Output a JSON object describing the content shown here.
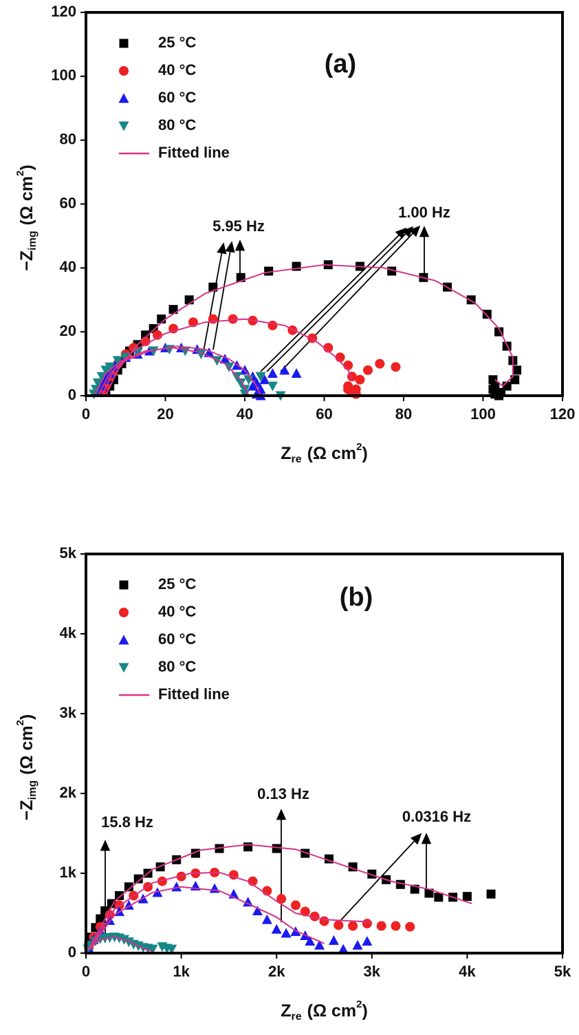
{
  "chart_data": [
    {
      "type": "scatter",
      "panel_label": "(a)",
      "xlabel": {
        "main": "Z",
        "sub": "re",
        "unit": "(Ω cm",
        "sup": "2",
        "end": ")"
      },
      "ylabel": {
        "main": "−Z",
        "sub": "img",
        "unit": "(Ω cm",
        "sup": "2",
        "end": ")"
      },
      "xlim": [
        0,
        120
      ],
      "xticks": [
        0,
        20,
        40,
        60,
        80,
        100,
        120
      ],
      "ylim": [
        0,
        120
      ],
      "yticks": [
        0,
        20,
        40,
        60,
        80,
        100,
        120
      ],
      "legend": "upper left",
      "annotations": [
        "5.95 Hz",
        "1.00 Hz"
      ],
      "series": [
        {
          "name": "25 °C",
          "color": "#000000",
          "marker": "square",
          "x": [
            5,
            6,
            7,
            8,
            9,
            10,
            11,
            13,
            15,
            17,
            19,
            22,
            26,
            32,
            39,
            46,
            53,
            61,
            69,
            77,
            85,
            91,
            97,
            101,
            104,
            106,
            107.5,
            108.5,
            108,
            106,
            104.5,
            103,
            102.5,
            102.5,
            103,
            104
          ],
          "values": [
            1,
            3,
            5,
            8,
            10,
            12,
            14,
            16,
            19,
            21,
            24,
            27,
            30,
            34,
            37,
            39,
            40.5,
            41,
            40.5,
            39,
            37,
            34,
            30,
            25.5,
            20,
            15.5,
            11,
            8,
            5,
            3,
            1,
            0.5,
            2,
            5,
            3,
            0
          ]
        },
        {
          "name": "40 °C",
          "color": "#ee2222",
          "marker": "circle",
          "x": [
            4,
            5,
            6,
            7,
            8,
            10,
            12,
            15,
            18,
            22,
            27,
            32,
            37,
            42,
            47,
            52,
            57,
            61,
            64,
            66,
            67,
            66,
            67,
            68,
            69,
            71,
            74,
            78,
            66,
            68
          ],
          "values": [
            1,
            3,
            6,
            8,
            10,
            13,
            15,
            17,
            19,
            21,
            23,
            24,
            24,
            23.5,
            22,
            20.5,
            18,
            15,
            12,
            9.5,
            6,
            3,
            1,
            2,
            5,
            8,
            10,
            9,
            2,
            0.5
          ]
        },
        {
          "name": "60 °C",
          "color": "#1a1aee",
          "marker": "triangle-up",
          "x": [
            3,
            4,
            5,
            6,
            7,
            8,
            10,
            13,
            16,
            20,
            24,
            28,
            31,
            35,
            38,
            40,
            42,
            43,
            44,
            43,
            42,
            45,
            47,
            50,
            53,
            44
          ],
          "values": [
            1,
            3,
            5,
            7,
            9,
            11,
            12,
            13,
            14,
            15,
            15,
            14.5,
            13.5,
            11.5,
            9.5,
            8,
            6,
            4,
            2,
            0.5,
            3,
            5,
            7,
            8,
            7,
            0
          ]
        },
        {
          "name": "80 °C",
          "color": "#178787",
          "marker": "triangle-down",
          "x": [
            2,
            2.5,
            3,
            4,
            5,
            6,
            8,
            10,
            13,
            17,
            21,
            25,
            29,
            33,
            36,
            38,
            39,
            40,
            40,
            41,
            44,
            47,
            49
          ],
          "values": [
            0.5,
            2,
            4,
            6,
            8,
            9,
            11,
            12,
            13.5,
            14,
            14.5,
            14,
            13,
            11,
            9,
            6,
            4,
            2,
            0.5,
            5,
            6,
            3,
            0
          ]
        },
        {
          "name": "Fitted line",
          "color": "#d6338a",
          "line": true,
          "x": [
            5,
            8,
            13,
            20,
            30,
            45,
            60,
            75,
            88,
            98,
            104,
            107.5,
            107.5,
            105,
            103,
            null,
            4,
            7,
            12,
            20,
            30,
            40,
            50,
            58,
            63,
            66,
            67,
            null,
            3,
            6,
            10,
            16,
            23,
            30,
            36,
            40,
            43,
            44,
            null,
            2,
            5,
            9,
            15,
            22,
            29,
            35,
            39,
            41
          ],
          "values": [
            0,
            8,
            16,
            24,
            32,
            38.5,
            41,
            40,
            36,
            29,
            21,
            12,
            6,
            3,
            5,
            null,
            0,
            8,
            14,
            19.5,
            23,
            24,
            22,
            17,
            12,
            8,
            5,
            null,
            0,
            7,
            11,
            14,
            15.5,
            14.5,
            11.5,
            8,
            3,
            0,
            null,
            0,
            7,
            11,
            14,
            15,
            13.5,
            10,
            5,
            0
          ]
        }
      ]
    },
    {
      "type": "scatter",
      "panel_label": "(b)",
      "xlabel": {
        "main": "Z",
        "sub": "re",
        "unit": "(Ω cm",
        "sup": "2",
        "end": ")"
      },
      "ylabel": {
        "main": "−Z",
        "sub": "img",
        "unit": "(Ω cm",
        "sup": "2",
        "end": ")"
      },
      "xlim": [
        0,
        5000
      ],
      "xticks": [
        0,
        {
          "value": 1000,
          "label": "1k"
        },
        {
          "value": 2000,
          "label": "2k"
        },
        {
          "value": 3000,
          "label": "3k"
        },
        {
          "value": 4000,
          "label": "4k"
        },
        {
          "value": 5000,
          "label": "5k"
        }
      ],
      "ylim": [
        0,
        5000
      ],
      "yticks": [
        0,
        {
          "value": 1000,
          "label": "1k"
        },
        {
          "value": 2000,
          "label": "2k"
        },
        {
          "value": 3000,
          "label": "3k"
        },
        {
          "value": 4000,
          "label": "4k"
        },
        {
          "value": 5000,
          "label": "5k"
        }
      ],
      "legend": "upper left",
      "annotations": [
        "15.8 Hz",
        "0.13 Hz",
        "0.0316 Hz"
      ],
      "series": [
        {
          "name": "25 °C",
          "color": "#000000",
          "marker": "square",
          "x": [
            30,
            60,
            100,
            150,
            200,
            270,
            350,
            450,
            550,
            650,
            780,
            950,
            1150,
            1400,
            1700,
            2000,
            2300,
            2550,
            2800,
            3000,
            3150,
            3300,
            3450,
            3600,
            3700,
            3850,
            4000,
            4250
          ],
          "values": [
            100,
            200,
            320,
            430,
            530,
            620,
            720,
            830,
            930,
            1000,
            1080,
            1170,
            1250,
            1310,
            1330,
            1310,
            1250,
            1180,
            1080,
            990,
            920,
            860,
            800,
            750,
            700,
            700,
            710,
            740
          ]
        },
        {
          "name": "40 °C",
          "color": "#ee2222",
          "marker": "circle",
          "x": [
            30,
            80,
            150,
            250,
            350,
            500,
            650,
            800,
            1000,
            1150,
            1350,
            1550,
            1750,
            1900,
            2050,
            2200,
            2300,
            2400,
            2500,
            2650,
            2800,
            2950,
            3100,
            3250,
            3400
          ],
          "values": [
            80,
            200,
            330,
            480,
            600,
            720,
            830,
            900,
            960,
            1000,
            1010,
            980,
            900,
            780,
            680,
            600,
            520,
            460,
            400,
            350,
            340,
            370,
            340,
            340,
            330
          ]
        },
        {
          "name": "60 °C",
          "color": "#1a1aee",
          "marker": "triangle-up",
          "x": [
            30,
            80,
            150,
            250,
            350,
            450,
            600,
            750,
            950,
            1150,
            1350,
            1550,
            1700,
            1800,
            1900,
            2000,
            2100,
            2200,
            2300,
            2350,
            2450,
            2600,
            2700,
            2850,
            2950
          ],
          "values": [
            60,
            170,
            280,
            410,
            520,
            600,
            680,
            760,
            830,
            840,
            810,
            740,
            640,
            530,
            420,
            300,
            250,
            270,
            220,
            150,
            100,
            160,
            50,
            100,
            150
          ]
        },
        {
          "name": "80 °C",
          "color": "#178787",
          "marker": "triangle-down",
          "x": [
            20,
            50,
            100,
            150,
            200,
            250,
            300,
            350,
            400,
            450,
            500,
            550,
            600,
            650,
            700,
            800,
            850,
            900
          ],
          "values": [
            50,
            100,
            150,
            180,
            190,
            195,
            200,
            190,
            170,
            140,
            110,
            90,
            70,
            60,
            50,
            80,
            60,
            50
          ]
        },
        {
          "name": "Fitted line",
          "color": "#d6338a",
          "line": true,
          "x": [
            30,
            300,
            700,
            1200,
            1700,
            2200,
            2700,
            3200,
            3600,
            4050,
            null,
            30,
            300,
            700,
            1100,
            1400,
            1700,
            2000,
            2200,
            2500,
            3000,
            null,
            30,
            300,
            700,
            1000,
            1400,
            1700,
            2000,
            2200,
            2500,
            null,
            20,
            150,
            300,
            450,
            600,
            700
          ],
          "values": [
            50,
            650,
            1050,
            1290,
            1360,
            1300,
            1100,
            900,
            800,
            620,
            null,
            50,
            550,
            880,
            1000,
            1010,
            900,
            650,
            500,
            420,
            390,
            null,
            40,
            480,
            760,
            830,
            780,
            620,
            450,
            280,
            120,
            null,
            40,
            170,
            200,
            150,
            60,
            20
          ]
        }
      ]
    }
  ]
}
